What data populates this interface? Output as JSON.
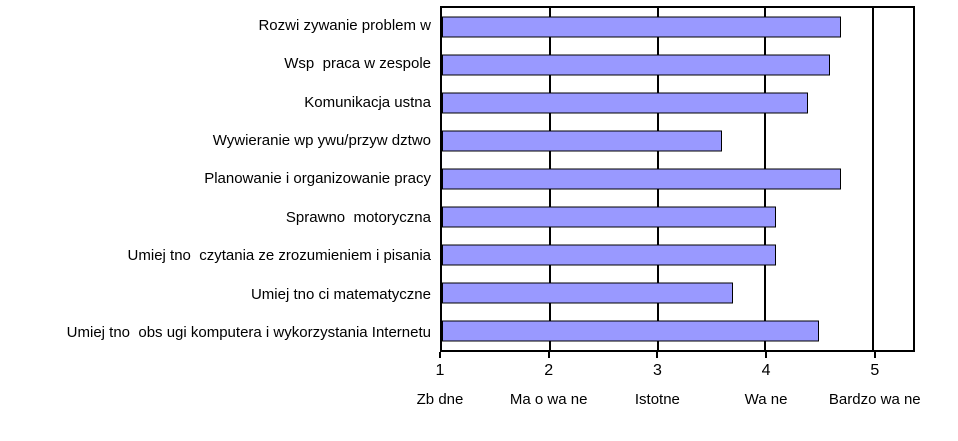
{
  "chart_data": {
    "type": "bar",
    "orientation": "horizontal",
    "title": "",
    "xlabel": "",
    "ylabel": "",
    "categories": [
      "Rozwi zywanie problem w",
      "Wsp  praca w zespole",
      "Komunikacja ustna",
      "Wywieranie wp ywu/przyw dztwo",
      "Planowanie i organizowanie pracy",
      "Sprawno  motoryczna",
      "Umiej tno  czytania ze zrozumieniem i pisania",
      "Umiej tno ci matematyczne",
      "Umiej tno  obs ugi komputera i wykorzystania Internetu"
    ],
    "values": [
      4.7,
      4.6,
      4.4,
      3.6,
      4.7,
      4.1,
      4.1,
      3.7,
      4.5
    ],
    "xlim": [
      1,
      5.37
    ],
    "ticks": [
      1,
      2,
      3,
      4,
      5
    ],
    "tick_names": [
      "Zb dne",
      "Ma o wa ne",
      "Istotne",
      "Wa ne",
      "Bardzo wa ne"
    ],
    "gridlines": [
      2,
      3,
      4,
      5
    ],
    "grid": true,
    "legend": "none",
    "bar_color": "#9999ff",
    "bar_border_color": "#000000",
    "plot_border_color": "#000000"
  }
}
